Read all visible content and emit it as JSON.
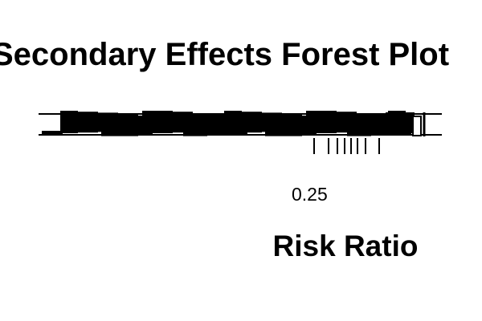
{
  "chart_data": {
    "type": "forest",
    "title": "Secondary Effects Forest Plot",
    "xlabel": "Risk Ratio",
    "x_scale": "log",
    "xticks_labeled": [
      "0.25"
    ],
    "grid": false,
    "legend": "none",
    "row_count_estimate": 25,
    "bar_color": "#000000"
  }
}
